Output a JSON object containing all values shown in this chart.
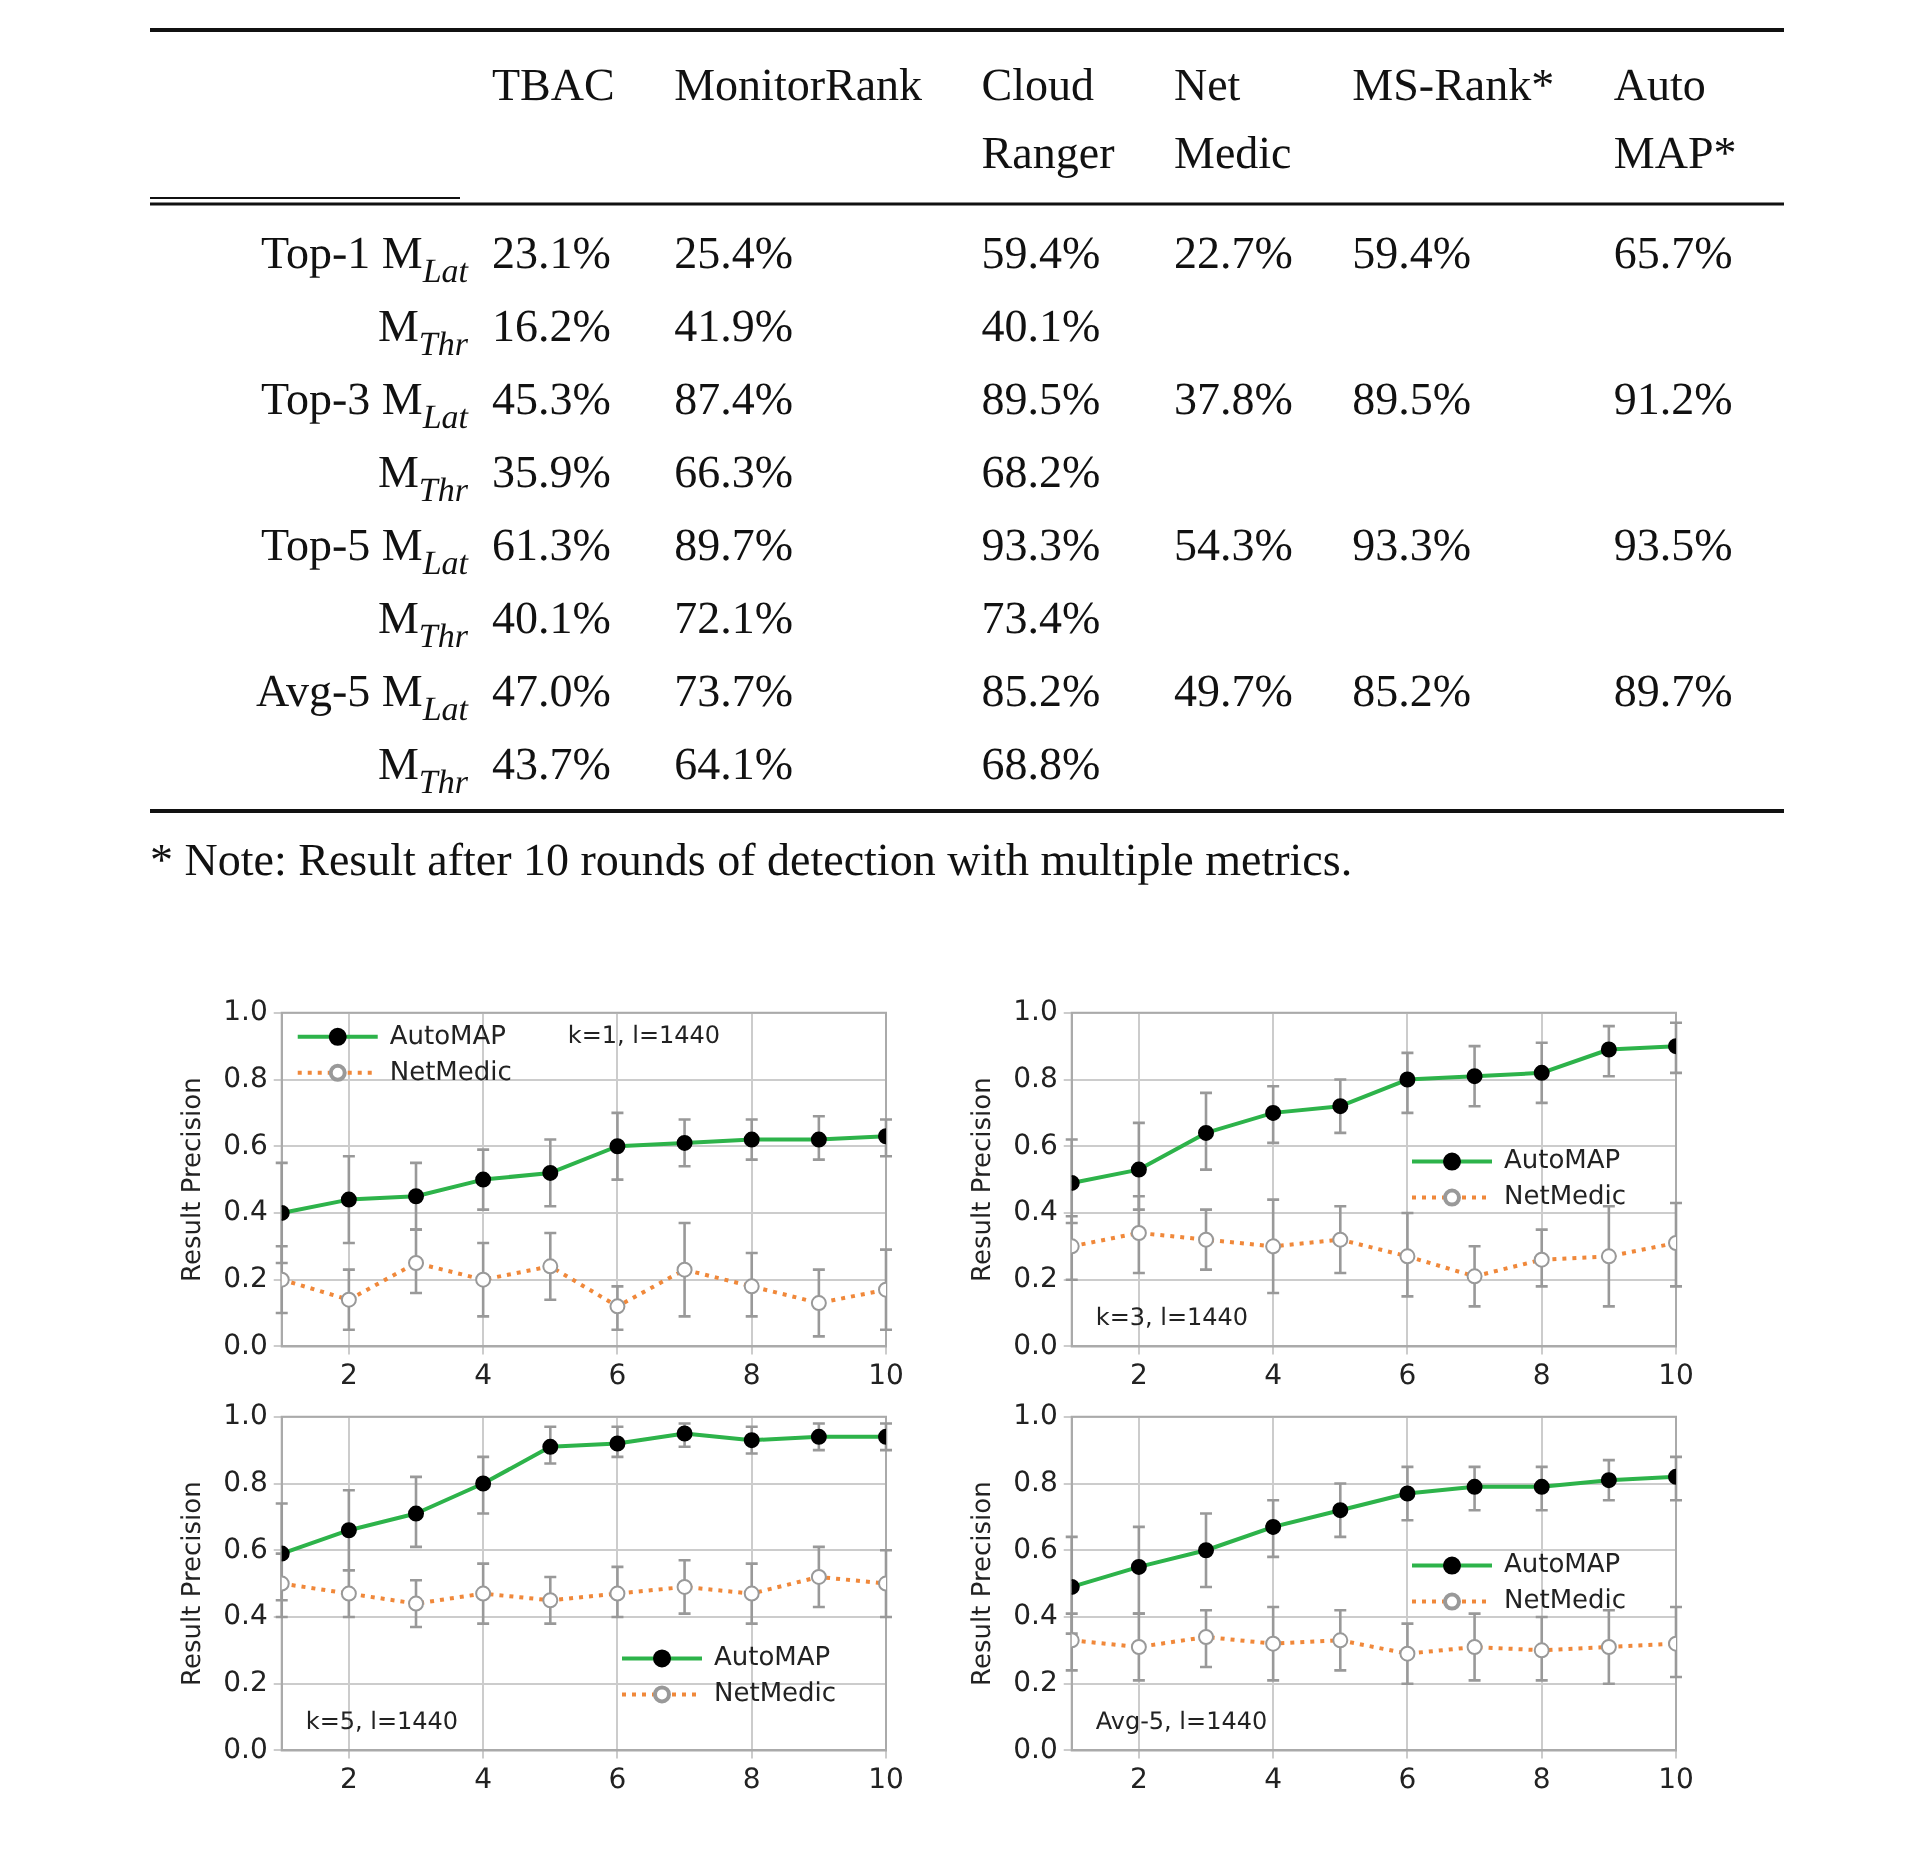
{
  "chart_data": [
    {
      "type": "heatmap",
      "categories": [
        "TBAC",
        "MonitorRank",
        "Cloud Ranger",
        "Net Medic",
        "MS-Rank*",
        "Auto MAP*"
      ],
      "y_categories": [
        "Top-1 M$_{Lat}$",
        "M$_{Thr}$",
        "Top-3 M$_{Lat}$",
        "M$_{Thr}$",
        "Top-5 M$_{Lat}$",
        "M$_{Thr}$",
        "Avg-5 M$_{Lat}$",
        "M$_{Thr}$"
      ],
      "cells": [
        [
          23.1,
          25.4,
          59.4,
          22.7,
          59.4,
          65.7
        ],
        [
          16.2,
          41.9,
          40.1,
          null,
          null,
          null
        ],
        [
          45.3,
          87.4,
          89.5,
          37.8,
          89.5,
          91.2
        ],
        [
          35.9,
          66.3,
          68.2,
          null,
          null,
          null
        ],
        [
          61.3,
          89.7,
          93.3,
          54.3,
          93.3,
          93.5
        ],
        [
          40.1,
          72.1,
          73.4,
          null,
          null,
          null
        ],
        [
          47.0,
          73.7,
          85.2,
          49.7,
          85.2,
          89.7
        ],
        [
          43.7,
          64.1,
          68.8,
          null,
          null,
          null
        ]
      ],
      "cell_labels": [
        [
          "23.1%",
          "25.4%",
          "59.4%",
          "22.7%",
          "59.4%",
          "65.7%"
        ],
        [
          "16.2%",
          "41.9%",
          "40.1%",
          null,
          null,
          null
        ],
        [
          "45.3%",
          "87.4%",
          "89.5%",
          "37.8%",
          "89.5%",
          "91.2%"
        ],
        [
          "35.9%",
          "66.3%",
          "68.2%",
          null,
          null,
          null
        ],
        [
          "61.3%",
          "89.7%",
          "93.3%",
          "54.3%",
          "93.3%",
          "93.5%"
        ],
        [
          "40.1%",
          "72.1%",
          "73.4%",
          null,
          null,
          null
        ],
        [
          "47.0%",
          "73.7%",
          "85.2%",
          "49.7%",
          "85.2%",
          "89.7%"
        ],
        [
          "43.7%",
          "64.1%",
          "68.8%",
          null,
          null,
          null
        ]
      ],
      "annotations": [
        "* Note: Result after 10 rounds of detection with multiple metrics."
      ]
    },
    {
      "type": "line",
      "ylabel": "Result Precision",
      "x": [
        1,
        2,
        3,
        4,
        5,
        6,
        7,
        8,
        9,
        10
      ],
      "xlim": [
        1,
        10
      ],
      "xticks": [
        2,
        4,
        6,
        8,
        10
      ],
      "ylim": [
        0,
        1
      ],
      "yticks": [
        {
          "value": 0,
          "label": "0.0"
        },
        {
          "value": 0.2,
          "label": "0.2"
        },
        {
          "value": 0.4,
          "label": "0.4"
        },
        {
          "value": 0.6,
          "label": "0.6"
        },
        {
          "value": 0.8,
          "label": "0.8"
        },
        {
          "value": 1,
          "label": "1.0"
        }
      ],
      "grid": true,
      "legend": "top left",
      "marker": "circle",
      "annotations": [
        "k=1, l=1440"
      ],
      "series": [
        {
          "name": "AutoMAP",
          "color": "#2db34a",
          "line_style": "solid",
          "values": [
            0.4,
            0.44,
            0.45,
            0.5,
            0.52,
            0.6,
            0.61,
            0.62,
            0.62,
            0.63
          ],
          "errors": [
            [
              0.25,
              0.55
            ],
            [
              0.31,
              0.57
            ],
            [
              0.35,
              0.55
            ],
            [
              0.41,
              0.59
            ],
            [
              0.42,
              0.62
            ],
            [
              0.5,
              0.7
            ],
            [
              0.54,
              0.68
            ],
            [
              0.56,
              0.68
            ],
            [
              0.56,
              0.69
            ],
            [
              0.57,
              0.68
            ]
          ]
        },
        {
          "name": "NetMedic",
          "color": "#f0883a",
          "line_style": "dotted",
          "values": [
            0.2,
            0.14,
            0.25,
            0.2,
            0.24,
            0.12,
            0.23,
            0.18,
            0.13,
            0.17
          ],
          "errors": [
            [
              0.1,
              0.3
            ],
            [
              0.05,
              0.23
            ],
            [
              0.16,
              0.35
            ],
            [
              0.09,
              0.31
            ],
            [
              0.14,
              0.34
            ],
            [
              0.05,
              0.18
            ],
            [
              0.09,
              0.37
            ],
            [
              0.09,
              0.28
            ],
            [
              0.03,
              0.23
            ],
            [
              0.05,
              0.29
            ]
          ]
        }
      ]
    },
    {
      "type": "line",
      "ylabel": "Result Precision",
      "x": [
        1,
        2,
        3,
        4,
        5,
        6,
        7,
        8,
        9,
        10
      ],
      "xlim": [
        1,
        10
      ],
      "xticks": [
        2,
        4,
        6,
        8,
        10
      ],
      "ylim": [
        0,
        1
      ],
      "yticks": [
        {
          "value": 0,
          "label": "0.0"
        },
        {
          "value": 0.2,
          "label": "0.2"
        },
        {
          "value": 0.4,
          "label": "0.4"
        },
        {
          "value": 0.6,
          "label": "0.6"
        },
        {
          "value": 0.8,
          "label": "0.8"
        },
        {
          "value": 1,
          "label": "1.0"
        }
      ],
      "grid": true,
      "legend": "right",
      "marker": "circle",
      "annotations": [
        "k=3, l=1440"
      ],
      "series": [
        {
          "name": "AutoMAP",
          "color": "#2db34a",
          "line_style": "solid",
          "values": [
            0.49,
            0.53,
            0.64,
            0.7,
            0.72,
            0.8,
            0.81,
            0.82,
            0.89,
            0.9
          ],
          "errors": [
            [
              0.37,
              0.62
            ],
            [
              0.41,
              0.67
            ],
            [
              0.53,
              0.76
            ],
            [
              0.61,
              0.78
            ],
            [
              0.64,
              0.8
            ],
            [
              0.7,
              0.88
            ],
            [
              0.72,
              0.9
            ],
            [
              0.73,
              0.91
            ],
            [
              0.81,
              0.96
            ],
            [
              0.82,
              0.97
            ]
          ]
        },
        {
          "name": "NetMedic",
          "color": "#f0883a",
          "line_style": "dotted",
          "values": [
            0.3,
            0.34,
            0.32,
            0.3,
            0.32,
            0.27,
            0.21,
            0.26,
            0.27,
            0.31
          ],
          "errors": [
            [
              0.2,
              0.39
            ],
            [
              0.22,
              0.45
            ],
            [
              0.23,
              0.41
            ],
            [
              0.16,
              0.44
            ],
            [
              0.22,
              0.42
            ],
            [
              0.15,
              0.4
            ],
            [
              0.12,
              0.3
            ],
            [
              0.18,
              0.35
            ],
            [
              0.12,
              0.42
            ],
            [
              0.18,
              0.43
            ]
          ]
        }
      ]
    },
    {
      "type": "line",
      "ylabel": "Result Precision",
      "x": [
        1,
        2,
        3,
        4,
        5,
        6,
        7,
        8,
        9,
        10
      ],
      "xlim": [
        1,
        10
      ],
      "xticks": [
        2,
        4,
        6,
        8,
        10
      ],
      "ylim": [
        0,
        1
      ],
      "yticks": [
        {
          "value": 0,
          "label": "0.0"
        },
        {
          "value": 0.2,
          "label": "0.2"
        },
        {
          "value": 0.4,
          "label": "0.4"
        },
        {
          "value": 0.6,
          "label": "0.6"
        },
        {
          "value": 0.8,
          "label": "0.8"
        },
        {
          "value": 1,
          "label": "1.0"
        }
      ],
      "grid": true,
      "legend": "bottom right",
      "marker": "circle",
      "annotations": [
        "k=5, l=1440"
      ],
      "series": [
        {
          "name": "AutoMAP",
          "color": "#2db34a",
          "line_style": "solid",
          "values": [
            0.59,
            0.66,
            0.71,
            0.8,
            0.91,
            0.92,
            0.95,
            0.93,
            0.94,
            0.94
          ],
          "errors": [
            [
              0.45,
              0.74
            ],
            [
              0.54,
              0.78
            ],
            [
              0.61,
              0.82
            ],
            [
              0.71,
              0.88
            ],
            [
              0.86,
              0.97
            ],
            [
              0.88,
              0.97
            ],
            [
              0.91,
              0.98
            ],
            [
              0.89,
              0.97
            ],
            [
              0.9,
              0.98
            ],
            [
              0.9,
              0.98
            ]
          ]
        },
        {
          "name": "NetMedic",
          "color": "#f0883a",
          "line_style": "dotted",
          "values": [
            0.5,
            0.47,
            0.44,
            0.47,
            0.45,
            0.47,
            0.49,
            0.47,
            0.52,
            0.5
          ],
          "errors": [
            [
              0.4,
              0.59
            ],
            [
              0.4,
              0.54
            ],
            [
              0.37,
              0.51
            ],
            [
              0.38,
              0.56
            ],
            [
              0.38,
              0.52
            ],
            [
              0.4,
              0.55
            ],
            [
              0.41,
              0.57
            ],
            [
              0.38,
              0.56
            ],
            [
              0.43,
              0.61
            ],
            [
              0.4,
              0.6
            ]
          ]
        }
      ]
    },
    {
      "type": "line",
      "ylabel": "Result Precision",
      "x": [
        1,
        2,
        3,
        4,
        5,
        6,
        7,
        8,
        9,
        10
      ],
      "xlim": [
        1,
        10
      ],
      "xticks": [
        2,
        4,
        6,
        8,
        10
      ],
      "ylim": [
        0,
        1
      ],
      "yticks": [
        {
          "value": 0,
          "label": "0.0"
        },
        {
          "value": 0.2,
          "label": "0.2"
        },
        {
          "value": 0.4,
          "label": "0.4"
        },
        {
          "value": 0.6,
          "label": "0.6"
        },
        {
          "value": 0.8,
          "label": "0.8"
        },
        {
          "value": 1,
          "label": "1.0"
        }
      ],
      "grid": true,
      "legend": "right",
      "marker": "circle",
      "annotations": [
        "Avg-5, l=1440"
      ],
      "series": [
        {
          "name": "AutoMAP",
          "color": "#2db34a",
          "line_style": "solid",
          "values": [
            0.49,
            0.55,
            0.6,
            0.67,
            0.72,
            0.77,
            0.79,
            0.79,
            0.81,
            0.82
          ],
          "errors": [
            [
              0.35,
              0.64
            ],
            [
              0.41,
              0.67
            ],
            [
              0.49,
              0.71
            ],
            [
              0.58,
              0.75
            ],
            [
              0.64,
              0.8
            ],
            [
              0.69,
              0.85
            ],
            [
              0.72,
              0.85
            ],
            [
              0.72,
              0.85
            ],
            [
              0.75,
              0.87
            ],
            [
              0.75,
              0.88
            ]
          ]
        },
        {
          "name": "NetMedic",
          "color": "#f0883a",
          "line_style": "dotted",
          "values": [
            0.33,
            0.31,
            0.34,
            0.32,
            0.33,
            0.29,
            0.31,
            0.3,
            0.31,
            0.32
          ],
          "errors": [
            [
              0.24,
              0.41
            ],
            [
              0.21,
              0.41
            ],
            [
              0.25,
              0.42
            ],
            [
              0.21,
              0.43
            ],
            [
              0.24,
              0.42
            ],
            [
              0.2,
              0.38
            ],
            [
              0.21,
              0.41
            ],
            [
              0.21,
              0.4
            ],
            [
              0.2,
              0.42
            ],
            [
              0.22,
              0.43
            ]
          ]
        }
      ]
    }
  ]
}
